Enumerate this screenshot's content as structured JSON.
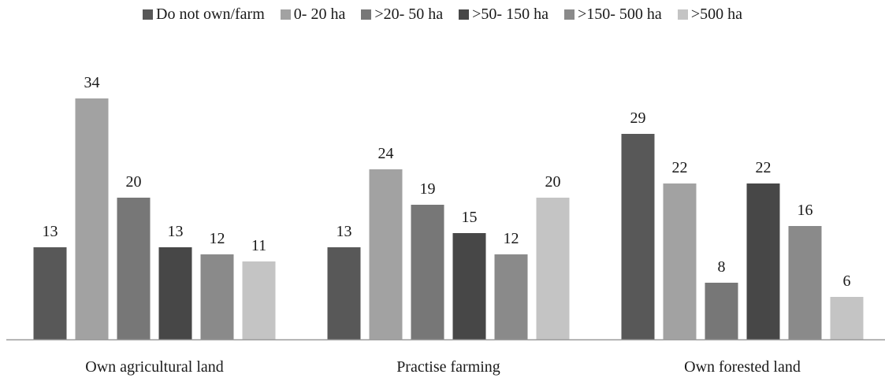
{
  "chart_data": {
    "type": "bar",
    "title": "",
    "xlabel": "",
    "ylabel": "",
    "ylim": [
      0,
      37
    ],
    "grid": false,
    "legend_position": "top",
    "categories": [
      "Own agricultural land",
      "Practise farming",
      "Own forested land"
    ],
    "series": [
      {
        "name": "Do not own/farm",
        "color": "#585858",
        "values": [
          13,
          13,
          29
        ]
      },
      {
        "name": "0- 20 ha",
        "color": "#a2a2a2",
        "values": [
          34,
          24,
          22
        ]
      },
      {
        "name": ">20- 50 ha",
        "color": "#777777",
        "values": [
          20,
          19,
          8
        ]
      },
      {
        "name": ">50- 150 ha",
        "color": "#474747",
        "values": [
          13,
          15,
          22
        ]
      },
      {
        "name": ">150- 500 ha",
        "color": "#8a8a8a",
        "values": [
          12,
          12,
          16
        ]
      },
      {
        "name": ">500 ha",
        "color": "#c4c4c4",
        "values": [
          11,
          20,
          6
        ]
      }
    ]
  },
  "colors": {
    "axis": "#9a9a9a"
  }
}
